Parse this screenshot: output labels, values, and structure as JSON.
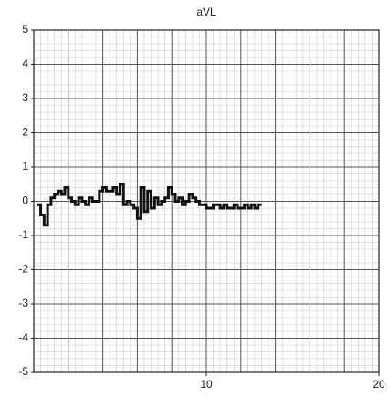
{
  "chart_data": {
    "type": "line",
    "title": "aVL",
    "x": [
      0.2,
      0.4,
      0.6,
      0.8,
      1.0,
      1.2,
      1.4,
      1.6,
      1.8,
      2.0,
      2.2,
      2.4,
      2.6,
      2.8,
      3.0,
      3.2,
      3.4,
      3.6,
      3.8,
      4.0,
      4.2,
      4.4,
      4.6,
      4.8,
      5.0,
      5.2,
      5.4,
      5.6,
      5.8,
      6.0,
      6.2,
      6.4,
      6.6,
      6.8,
      7.0,
      7.2,
      7.4,
      7.6,
      7.8,
      8.0,
      8.2,
      8.4,
      8.6,
      8.8,
      9.0,
      9.2,
      9.4,
      9.6,
      9.8,
      10.0,
      10.2,
      10.4,
      10.6,
      10.8,
      11.0,
      11.2,
      11.4,
      11.6,
      11.8,
      12.0,
      12.2,
      12.4,
      12.6,
      12.8,
      13.0,
      13.2
    ],
    "series": [
      {
        "color": "#111111",
        "values": [
          -0.1,
          -0.4,
          -0.7,
          -0.1,
          0.1,
          0.2,
          0.3,
          0.2,
          0.4,
          0.1,
          0.0,
          -0.1,
          0.1,
          0.0,
          -0.1,
          0.1,
          0.0,
          0.0,
          0.3,
          0.4,
          0.3,
          0.3,
          0.4,
          0.2,
          0.5,
          -0.1,
          0.0,
          -0.1,
          -0.2,
          -0.5,
          0.4,
          -0.3,
          0.3,
          -0.2,
          0.1,
          -0.1,
          0.0,
          0.1,
          0.4,
          0.2,
          0.0,
          0.1,
          -0.1,
          0.0,
          0.2,
          0.1,
          0.0,
          -0.1,
          -0.1,
          -0.2,
          -0.2,
          -0.1,
          -0.1,
          -0.2,
          -0.1,
          -0.2,
          -0.2,
          -0.1,
          -0.2,
          -0.2,
          -0.1,
          -0.2,
          -0.1,
          -0.2,
          -0.1,
          -0.1
        ]
      }
    ],
    "xlim": [
      0,
      20
    ],
    "xticks": [
      10,
      20
    ],
    "ylim": [
      -5,
      5
    ],
    "yticks": [
      -5,
      -4,
      -3,
      -2,
      -1,
      0,
      1,
      2,
      3,
      4,
      5
    ],
    "grid": true
  }
}
